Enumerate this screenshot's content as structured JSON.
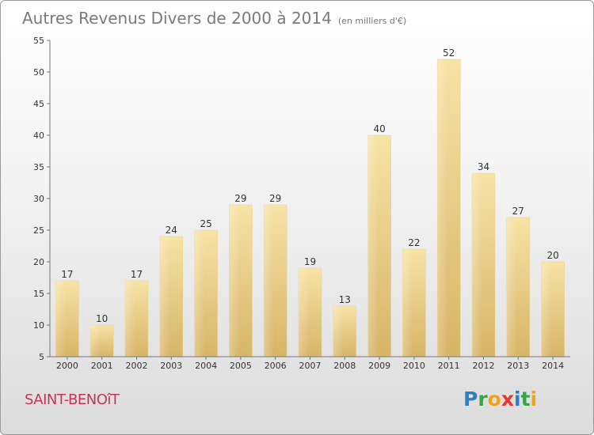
{
  "title": "Autres Revenus Divers de 2000 à 2014",
  "subtitle": "(en milliers d'€)",
  "commune": "SAINT-BENOîT",
  "logo": {
    "text": "Proxiti",
    "letters": [
      "P",
      "r",
      "o",
      "x",
      "i",
      "t",
      "i"
    ]
  },
  "colors": {
    "bar_light": "#f6e0a0",
    "bar_dark": "#d9b96b",
    "commune": "#c8325a",
    "axis": "#555555"
  },
  "chart_data": {
    "type": "bar",
    "categories": [
      "2000",
      "2001",
      "2002",
      "2003",
      "2004",
      "2005",
      "2006",
      "2007",
      "2008",
      "2009",
      "2010",
      "2011",
      "2012",
      "2013",
      "2014"
    ],
    "values": [
      17,
      10,
      17,
      24,
      25,
      29,
      29,
      19,
      13,
      40,
      22,
      52,
      34,
      27,
      20
    ],
    "title": "Autres Revenus Divers de 2000 à 2014",
    "subtitle": "(en milliers d'€)",
    "ylim": [
      5,
      55
    ],
    "yticks": [
      5,
      10,
      15,
      20,
      25,
      30,
      35,
      40,
      45,
      50,
      55
    ],
    "grid": false,
    "legend": "none"
  }
}
